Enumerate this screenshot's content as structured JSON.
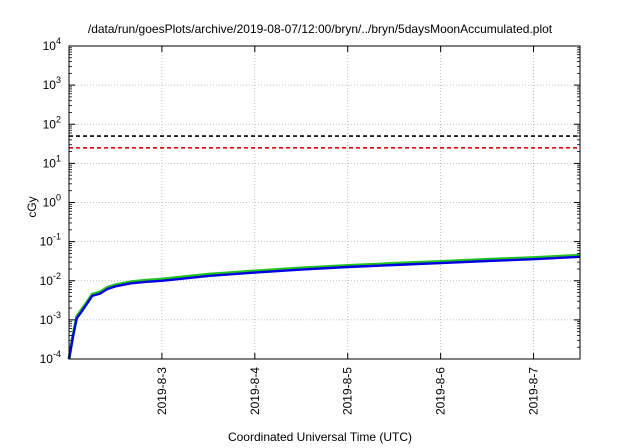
{
  "chart_data": {
    "type": "line",
    "title": "/data/run/goesPlots/archive/2019-08-07/12:00/bryn/../bryn/5daysMoonAccumulated.plot",
    "xlabel": "Coordinated Universal Time (UTC)",
    "ylabel": "cGy",
    "y_scale": "log",
    "ylim": [
      0.0001,
      10000
    ],
    "y_ticks": [
      {
        "base": "10",
        "exp": "-4"
      },
      {
        "base": "10",
        "exp": "-3"
      },
      {
        "base": "10",
        "exp": "-2"
      },
      {
        "base": "10",
        "exp": "-1"
      },
      {
        "base": "10",
        "exp": "0"
      },
      {
        "base": "10",
        "exp": "1"
      },
      {
        "base": "10",
        "exp": "2"
      },
      {
        "base": "10",
        "exp": "3"
      },
      {
        "base": "10",
        "exp": "4"
      }
    ],
    "xlim": [
      "2019-08-02 00:00",
      "2019-08-07 12:00"
    ],
    "x_ticks": [
      "2019-8-3",
      "2019-8-4",
      "2019-8-5",
      "2019-8-6",
      "2019-8-7"
    ],
    "grid": true,
    "reference_lines": [
      {
        "color": "#000000",
        "value": 50,
        "style": "dashed"
      },
      {
        "color": "#e8000b",
        "value": 25,
        "style": "dashed"
      }
    ],
    "series": [
      {
        "color": "#22c422",
        "x": [
          "2019-08-02 00:00",
          "2019-08-02 01:00",
          "2019-08-02 02:00",
          "2019-08-02 03:00",
          "2019-08-02 04:00",
          "2019-08-02 06:00",
          "2019-08-02 08:00",
          "2019-08-02 10:00",
          "2019-08-02 12:00",
          "2019-08-02 16:00",
          "2019-08-02 20:00",
          "2019-08-03 00:00",
          "2019-08-03 12:00",
          "2019-08-04 00:00",
          "2019-08-04 12:00",
          "2019-08-05 00:00",
          "2019-08-05 12:00",
          "2019-08-06 00:00",
          "2019-08-06 12:00",
          "2019-08-07 00:00",
          "2019-08-07 12:00"
        ],
        "y": [
          0.0001,
          0.0004,
          0.0012,
          0.0017,
          0.0023,
          0.0045,
          0.0052,
          0.0068,
          0.0079,
          0.0094,
          0.0103,
          0.011,
          0.0146,
          0.0178,
          0.0212,
          0.0246,
          0.0278,
          0.0311,
          0.0351,
          0.0391,
          0.0451
        ]
      },
      {
        "color": "#0000e0",
        "x": [
          "2019-08-02 00:00",
          "2019-08-02 01:00",
          "2019-08-02 02:00",
          "2019-08-02 03:00",
          "2019-08-02 04:00",
          "2019-08-02 06:00",
          "2019-08-02 08:00",
          "2019-08-02 10:00",
          "2019-08-02 12:00",
          "2019-08-02 16:00",
          "2019-08-02 20:00",
          "2019-08-03 00:00",
          "2019-08-03 12:00",
          "2019-08-04 00:00",
          "2019-08-04 12:00",
          "2019-08-05 00:00",
          "2019-08-05 12:00",
          "2019-08-06 00:00",
          "2019-08-06 12:00",
          "2019-08-07 00:00",
          "2019-08-07 12:00"
        ],
        "y": [
          0.0001,
          0.00036,
          0.0011,
          0.0015,
          0.0021,
          0.0041,
          0.0047,
          0.0062,
          0.0072,
          0.0086,
          0.0094,
          0.01,
          0.0133,
          0.0162,
          0.0193,
          0.0224,
          0.0253,
          0.0283,
          0.0319,
          0.0356,
          0.041
        ]
      }
    ]
  }
}
